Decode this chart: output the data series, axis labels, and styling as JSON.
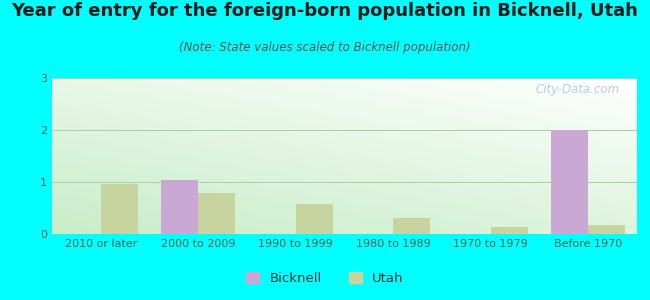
{
  "title": "Year of entry for the foreign-born population in Bicknell, Utah",
  "subtitle": "(Note: State values scaled to Bicknell population)",
  "categories": [
    "2010 or later",
    "2000 to 2009",
    "1990 to 1999",
    "1980 to 1989",
    "1970 to 1979",
    "Before 1970"
  ],
  "bicknell_values": [
    0,
    1.04,
    0,
    0,
    0,
    2.0
  ],
  "utah_values": [
    0.97,
    0.78,
    0.57,
    0.3,
    0.14,
    0.18
  ],
  "bicknell_color": "#c9a8d4",
  "utah_color": "#c8d4a0",
  "background_color": "#00FFFF",
  "ylim": [
    0,
    3
  ],
  "yticks": [
    0,
    1,
    2,
    3
  ],
  "bar_width": 0.38,
  "watermark": "City-Data.com",
  "title_fontsize": 13,
  "subtitle_fontsize": 8.5,
  "tick_fontsize": 8,
  "legend_fontsize": 9.5
}
